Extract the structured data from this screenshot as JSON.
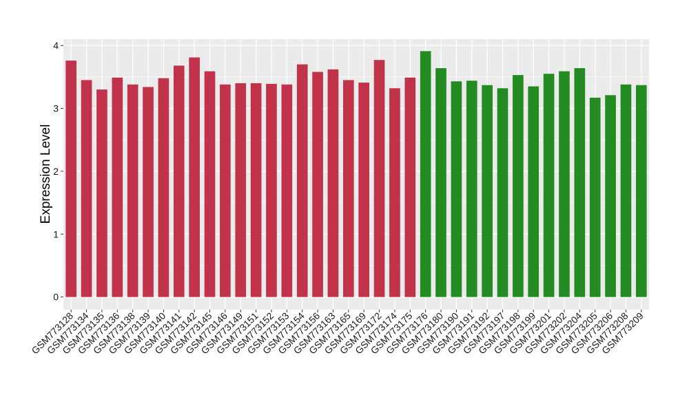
{
  "chart_data": {
    "type": "bar",
    "title": "",
    "xlabel": "",
    "ylabel": "Expression Level",
    "ylim": [
      -0.2,
      4.1
    ],
    "yticks": [
      0,
      1,
      2,
      3,
      4
    ],
    "grid": true,
    "legend": "none",
    "colors": {
      "red": "#c0334b",
      "green": "#238b22",
      "panel": "#ebebeb",
      "gridline": "#ffffff"
    },
    "categories": [
      "GSM773128",
      "GSM773134",
      "GSM773135",
      "GSM773136",
      "GSM773138",
      "GSM773139",
      "GSM773140",
      "GSM773141",
      "GSM773142",
      "GSM773145",
      "GSM773146",
      "GSM773149",
      "GSM773151",
      "GSM773152",
      "GSM773153",
      "GSM773154",
      "GSM773156",
      "GSM773163",
      "GSM773165",
      "GSM773169",
      "GSM773172",
      "GSM773174",
      "GSM773175",
      "GSM773176",
      "GSM773180",
      "GSM773190",
      "GSM773191",
      "GSM773192",
      "GSM773197",
      "GSM773198",
      "GSM773199",
      "GSM773201",
      "GSM773202",
      "GSM773204",
      "GSM773205",
      "GSM773206",
      "GSM773208",
      "GSM773209"
    ],
    "values": [
      3.76,
      3.45,
      3.3,
      3.49,
      3.38,
      3.34,
      3.48,
      3.68,
      3.81,
      3.59,
      3.38,
      3.4,
      3.4,
      3.39,
      3.38,
      3.7,
      3.58,
      3.62,
      3.45,
      3.41,
      3.77,
      3.32,
      3.49,
      3.91,
      3.64,
      3.43,
      3.44,
      3.37,
      3.32,
      3.53,
      3.35,
      3.55,
      3.59,
      3.64,
      3.17,
      3.21,
      3.38,
      3.37
    ],
    "bar_color_groups": [
      "red",
      "red",
      "red",
      "red",
      "red",
      "red",
      "red",
      "red",
      "red",
      "red",
      "red",
      "red",
      "red",
      "red",
      "red",
      "red",
      "red",
      "red",
      "red",
      "red",
      "red",
      "red",
      "red",
      "green",
      "green",
      "green",
      "green",
      "green",
      "green",
      "green",
      "green",
      "green",
      "green",
      "green",
      "green",
      "green",
      "green",
      "green"
    ]
  }
}
